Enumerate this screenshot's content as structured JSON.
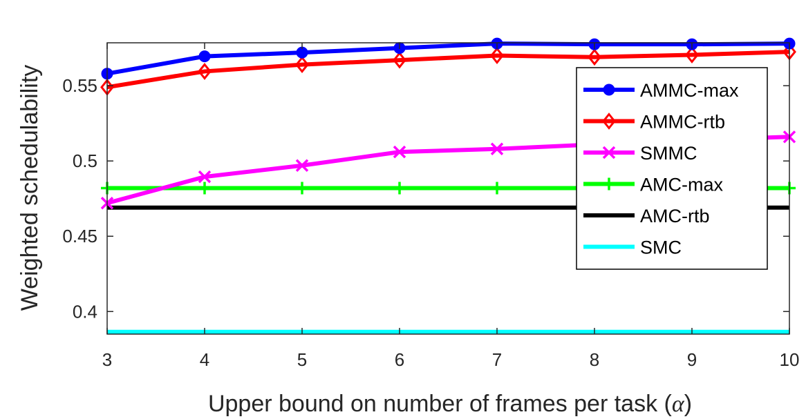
{
  "chart_data": {
    "type": "line",
    "title": "",
    "xlabel": "Upper bound on number of frames per task (",
    "xlabel_symbol": "α",
    "xlabel_close": ")",
    "ylabel": "Weighted schedulability",
    "x": [
      3,
      4,
      5,
      6,
      7,
      8,
      9,
      10
    ],
    "xticks": [
      "3",
      "4",
      "5",
      "6",
      "7",
      "8",
      "9",
      "10"
    ],
    "yticks": [
      {
        "value": 0.4,
        "label": "0.4"
      },
      {
        "value": 0.45,
        "label": "0.45"
      },
      {
        "value": 0.5,
        "label": "0.5"
      },
      {
        "value": 0.55,
        "label": "0.55"
      }
    ],
    "xlim": [
      3,
      10
    ],
    "ylim": [
      0.385,
      0.5785
    ],
    "grid": false,
    "legend_position": "right",
    "series": [
      {
        "name": "AMMC-max",
        "color": "#0000ff",
        "marker": "circle",
        "values": [
          0.558,
          0.5695,
          0.572,
          0.575,
          0.578,
          0.5775,
          0.5775,
          0.578
        ]
      },
      {
        "name": "AMMC-rtb",
        "color": "#ff0000",
        "marker": "diamond",
        "values": [
          0.549,
          0.5595,
          0.564,
          0.567,
          0.57,
          0.569,
          0.5705,
          0.5725
        ]
      },
      {
        "name": "SMMC",
        "color": "#ff00ff",
        "marker": "x",
        "values": [
          0.472,
          0.4895,
          0.497,
          0.506,
          0.508,
          0.511,
          0.514,
          0.516
        ]
      },
      {
        "name": "AMC-max",
        "color": "#00ff00",
        "marker": "plus",
        "values": [
          0.482,
          0.482,
          0.482,
          0.482,
          0.482,
          0.482,
          0.482,
          0.482
        ]
      },
      {
        "name": "AMC-rtb",
        "color": "#000000",
        "marker": "none",
        "values": [
          0.469,
          0.469,
          0.469,
          0.469,
          0.469,
          0.469,
          0.469,
          0.469
        ]
      },
      {
        "name": "SMC",
        "color": "#00ffff",
        "marker": "none",
        "values": [
          0.3865,
          0.3865,
          0.3865,
          0.3865,
          0.3865,
          0.3865,
          0.3865,
          0.3865
        ]
      }
    ]
  }
}
